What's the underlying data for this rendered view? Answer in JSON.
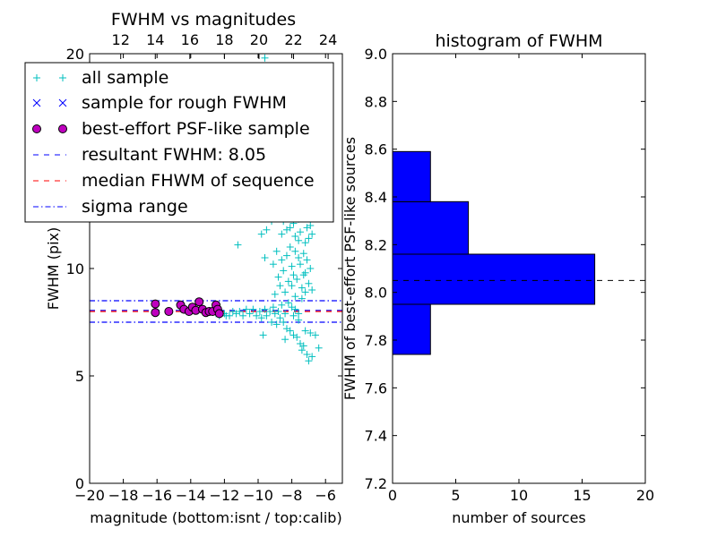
{
  "chart_data": [
    {
      "type": "scatter",
      "title": "FWHM vs magnitudes",
      "xlabel": "magnitude (bottom:isnt / top:calib)",
      "ylabel": "FWHM (pix)",
      "xlim": [
        -20,
        -5
      ],
      "ylim": [
        0,
        20
      ],
      "xticks": [
        -20,
        -18,
        -16,
        -14,
        -12,
        -10,
        -8,
        -6
      ],
      "xtick_labels": [
        "−20",
        "−18",
        "−16",
        "−14",
        "−12",
        "−10",
        "−8",
        "−6"
      ],
      "yticks": [
        0,
        5,
        10,
        20
      ],
      "ytick_labels": [
        "0",
        "5",
        "10",
        "20"
      ],
      "top_axis": {
        "ticks_calib": [
          12,
          14,
          16,
          18,
          20,
          22,
          24
        ],
        "tick_labels": [
          "12",
          "14",
          "16",
          "18",
          "20",
          "22",
          "24"
        ],
        "calib_at_bottom_min": 10.2,
        "calib_per_bottom_unit": 0.975
      },
      "legend": {
        "placement": "upper-left",
        "entries": [
          {
            "label": "all sample",
            "marker": "+",
            "color": "#00bfbf"
          },
          {
            "label": "sample for rough FWHM",
            "marker": "x",
            "color": "#0000ff"
          },
          {
            "label": "best-effort PSF-like sample",
            "marker": "o",
            "color": "#bf00bf"
          },
          {
            "label": "resultant FWHM: 8.05",
            "line": "dashed",
            "color": "#0000ff"
          },
          {
            "label": "median FHWM of sequence",
            "line": "dashed",
            "color": "#ff0000"
          },
          {
            "label": "sigma range",
            "line": "dashdot",
            "color": "#0000ff"
          }
        ]
      },
      "hlines": [
        {
          "y": 8.05,
          "color": "#0000ff",
          "style": "dashed"
        },
        {
          "y": 8.0,
          "color": "#ff0000",
          "style": "dashed"
        },
        {
          "y": 8.5,
          "color": "#0000ff",
          "style": "dashdot"
        },
        {
          "y": 7.5,
          "color": "#0000ff",
          "style": "dashdot"
        }
      ],
      "series": [
        {
          "name": "all sample",
          "marker": "+",
          "color": "#00bfbf",
          "points": [
            [
              -11.2,
              11.1
            ],
            [
              -9.6,
              19.8
            ],
            [
              -10.1,
              18.5
            ],
            [
              -12.5,
              7.9
            ],
            [
              -12.3,
              7.8
            ],
            [
              -12.0,
              7.9
            ],
            [
              -11.9,
              7.8
            ],
            [
              -11.7,
              7.8
            ],
            [
              -11.5,
              8.0
            ],
            [
              -11.3,
              7.9
            ],
            [
              -11.1,
              8.0
            ],
            [
              -10.9,
              7.8
            ],
            [
              -10.7,
              8.1
            ],
            [
              -10.5,
              7.9
            ],
            [
              -10.3,
              8.1
            ],
            [
              -10.1,
              7.8
            ],
            [
              -9.9,
              8.0
            ],
            [
              -9.8,
              7.7
            ],
            [
              -9.6,
              8.1
            ],
            [
              -9.5,
              7.8
            ],
            [
              -9.3,
              8.0
            ],
            [
              -9.2,
              7.5
            ],
            [
              -9.1,
              8.2
            ],
            [
              -9.0,
              7.9
            ],
            [
              -8.9,
              7.4
            ],
            [
              -8.8,
              8.0
            ],
            [
              -8.7,
              7.7
            ],
            [
              -8.6,
              8.3
            ],
            [
              -8.5,
              7.5
            ],
            [
              -8.4,
              7.9
            ],
            [
              -8.3,
              7.2
            ],
            [
              -8.2,
              8.4
            ],
            [
              -8.1,
              7.1
            ],
            [
              -8.0,
              8.2
            ],
            [
              -7.9,
              6.9
            ],
            [
              -7.9,
              7.8
            ],
            [
              -7.8,
              8.1
            ],
            [
              -7.7,
              6.8
            ],
            [
              -7.6,
              7.6
            ],
            [
              -7.5,
              6.5
            ],
            [
              -7.4,
              6.2
            ],
            [
              -7.3,
              6.4
            ],
            [
              -7.2,
              7.1
            ],
            [
              -7.1,
              6.0
            ],
            [
              -7.0,
              5.7
            ],
            [
              -6.8,
              5.9
            ],
            [
              -6.6,
              6.9
            ],
            [
              -6.4,
              6.3
            ],
            [
              -6.9,
              7.0
            ],
            [
              -7.6,
              7.9
            ],
            [
              -8.4,
              6.7
            ],
            [
              -9.7,
              6.9
            ],
            [
              -9.0,
              8.8
            ],
            [
              -8.8,
              9.6
            ],
            [
              -8.7,
              9.2
            ],
            [
              -8.6,
              10.4
            ],
            [
              -8.5,
              9.9
            ],
            [
              -8.4,
              8.9
            ],
            [
              -8.3,
              10.6
            ],
            [
              -8.2,
              9.4
            ],
            [
              -8.1,
              11.0
            ],
            [
              -8.0,
              10.1
            ],
            [
              -7.9,
              9.7
            ],
            [
              -7.8,
              10.8
            ],
            [
              -7.7,
              9.5
            ],
            [
              -7.6,
              11.3
            ],
            [
              -7.5,
              10.2
            ],
            [
              -7.4,
              9.1
            ],
            [
              -7.3,
              10.7
            ],
            [
              -7.2,
              9.8
            ],
            [
              -7.1,
              10.4
            ],
            [
              -7.0,
              9.3
            ],
            [
              -6.9,
              10.0
            ],
            [
              -7.4,
              8.6
            ],
            [
              -7.8,
              8.7
            ],
            [
              -7.2,
              8.9
            ],
            [
              -6.8,
              9.0
            ],
            [
              -8.6,
              11.6
            ],
            [
              -8.5,
              12.2
            ],
            [
              -8.3,
              11.8
            ],
            [
              -8.2,
              12.6
            ],
            [
              -8.1,
              11.9
            ],
            [
              -8.0,
              12.9
            ],
            [
              -7.9,
              12.1
            ],
            [
              -7.8,
              11.5
            ],
            [
              -7.7,
              12.8
            ],
            [
              -7.6,
              12.3
            ],
            [
              -7.5,
              11.7
            ],
            [
              -7.4,
              13.0
            ],
            [
              -7.3,
              12.4
            ],
            [
              -7.2,
              11.2
            ],
            [
              -7.1,
              12.7
            ],
            [
              -7.0,
              11.4
            ],
            [
              -6.9,
              12.0
            ],
            [
              -8.4,
              12.9
            ],
            [
              -7.8,
              13.0
            ],
            [
              -9.2,
              12.2
            ],
            [
              -9.5,
              11.8
            ],
            [
              -9.8,
              11.6
            ],
            [
              -6.8,
              11.6
            ],
            [
              -7.1,
              11.9
            ],
            [
              -8.9,
              10.8
            ],
            [
              -9.1,
              10.2
            ],
            [
              -9.6,
              10.5
            ],
            [
              -7.6,
              10.5
            ],
            [
              -8.0,
              9.2
            ],
            [
              -7.3,
              9.7
            ]
          ]
        },
        {
          "name": "best-effort PSF-like sample",
          "marker": "o",
          "color": "#bf00bf",
          "points": [
            [
              -16.1,
              8.35
            ],
            [
              -16.1,
              7.95
            ],
            [
              -15.3,
              8.0
            ],
            [
              -14.6,
              8.3
            ],
            [
              -14.4,
              8.1
            ],
            [
              -14.1,
              8.0
            ],
            [
              -13.9,
              8.2
            ],
            [
              -13.7,
              8.05
            ],
            [
              -13.5,
              8.45
            ],
            [
              -13.3,
              8.1
            ],
            [
              -13.1,
              7.95
            ],
            [
              -12.9,
              8.0
            ],
            [
              -12.7,
              8.0
            ],
            [
              -12.5,
              8.3
            ],
            [
              -12.4,
              8.1
            ],
            [
              -12.3,
              7.9
            ]
          ]
        }
      ]
    },
    {
      "type": "bar",
      "orientation": "horizontal",
      "title": "histogram of FWHM",
      "xlabel": "number of sources",
      "ylabel": "FWHM of best-effort PSF-like sources",
      "xlim": [
        0,
        20
      ],
      "ylim": [
        7.2,
        9.0
      ],
      "xticks": [
        0,
        5,
        10,
        15,
        20
      ],
      "xtick_labels": [
        "0",
        "5",
        "10",
        "15",
        "20"
      ],
      "yticks": [
        7.2,
        7.4,
        7.6,
        7.8,
        8.0,
        8.2,
        8.4,
        8.6,
        8.8,
        9.0
      ],
      "ytick_labels": [
        "7.2",
        "7.4",
        "7.6",
        "7.8",
        "8.0",
        "8.2",
        "8.4",
        "8.6",
        "8.8",
        "9.0"
      ],
      "color": "#0000ff",
      "bins": [
        {
          "from": 7.74,
          "to": 7.95,
          "count": 3
        },
        {
          "from": 7.95,
          "to": 8.16,
          "count": 16
        },
        {
          "from": 8.16,
          "to": 8.38,
          "count": 6
        },
        {
          "from": 8.38,
          "to": 8.59,
          "count": 3
        }
      ],
      "hlines": [
        {
          "y": 8.05,
          "color": "#000000",
          "style": "dashed"
        }
      ]
    }
  ]
}
